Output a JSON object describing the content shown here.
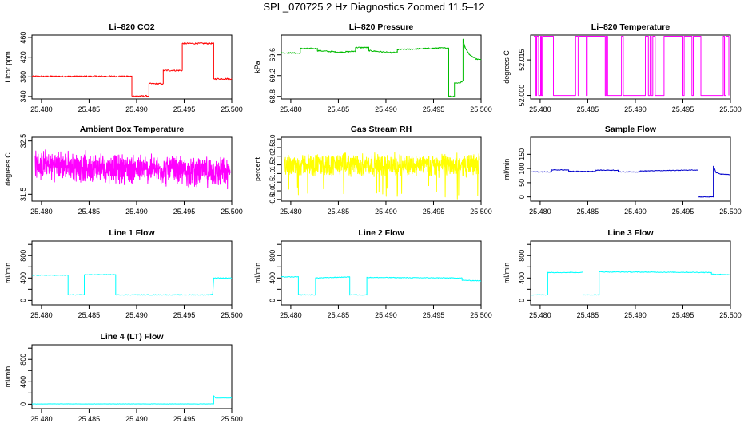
{
  "page": {
    "title": "SPL_070725  2 Hz Diagnostics Zoomed 11.5–12"
  },
  "chart_data": [
    {
      "type": "line",
      "title": "Li–820 CO2",
      "xlabel": "",
      "ylabel": "Licor ppm",
      "color": "#ff0000",
      "xlim": [
        25.479,
        25.5
      ],
      "ylim": [
        335,
        465
      ],
      "xticks": [
        25.48,
        25.485,
        25.49,
        25.495,
        25.5
      ],
      "xtick_labels": [
        "25.480",
        "25.485",
        "25.490",
        "25.495",
        "25.500"
      ],
      "yticks": [
        340,
        380,
        420,
        460
      ],
      "ytick_labels": [
        "340",
        "380",
        "420",
        "460"
      ],
      "series": [
        {
          "noise": 1.5,
          "points": [
            [
              25.479,
              381
            ],
            [
              25.4895,
              381
            ],
            [
              25.4895,
              341
            ],
            [
              25.4913,
              341
            ],
            [
              25.4913,
              366
            ],
            [
              25.4928,
              366
            ],
            [
              25.4928,
              393
            ],
            [
              25.4948,
              393
            ],
            [
              25.4948,
              448
            ],
            [
              25.4981,
              448
            ],
            [
              25.4981,
              376
            ],
            [
              25.5,
              376
            ]
          ]
        }
      ]
    },
    {
      "type": "line",
      "title": "Li–820 Pressure",
      "xlabel": "",
      "ylabel": "kPa",
      "color": "#00bb00",
      "xlim": [
        25.479,
        25.5
      ],
      "ylim": [
        68.75,
        69.98
      ],
      "xticks": [
        25.48,
        25.485,
        25.49,
        25.495,
        25.5
      ],
      "xtick_labels": [
        "25.480",
        "25.485",
        "25.490",
        "25.495",
        "25.500"
      ],
      "yticks": [
        68.8,
        69.2,
        69.6
      ],
      "ytick_labels": [
        "68.8",
        "69.2",
        "69.6"
      ],
      "series": [
        {
          "noise": 0.012,
          "points": [
            [
              25.479,
              69.64
            ],
            [
              25.481,
              69.63
            ],
            [
              25.481,
              69.72
            ],
            [
              25.4828,
              69.72
            ],
            [
              25.4828,
              69.68
            ],
            [
              25.4852,
              69.65
            ],
            [
              25.4868,
              69.67
            ],
            [
              25.4868,
              69.74
            ],
            [
              25.4882,
              69.74
            ],
            [
              25.4882,
              69.68
            ],
            [
              25.4905,
              69.64
            ],
            [
              25.4912,
              69.65
            ],
            [
              25.4912,
              69.7
            ],
            [
              25.4955,
              69.73
            ],
            [
              25.4966,
              69.73
            ],
            [
              25.4966,
              68.8
            ],
            [
              25.4972,
              68.8
            ],
            [
              25.4972,
              69.06
            ],
            [
              25.4978,
              69.06
            ],
            [
              25.4981,
              69.1
            ],
            [
              25.4981,
              69.9
            ],
            [
              25.4983,
              69.75
            ],
            [
              25.4988,
              69.6
            ],
            [
              25.4995,
              69.52
            ],
            [
              25.5,
              69.5
            ]
          ]
        }
      ]
    },
    {
      "type": "line",
      "title": "Li–820 Temperature",
      "xlabel": "",
      "ylabel": "degrees C",
      "color": "#ff00ff",
      "xlim": [
        25.479,
        25.5
      ],
      "ylim": [
        51.9985,
        52.0255
      ],
      "xticks": [
        25.48,
        25.485,
        25.49,
        25.495,
        25.5
      ],
      "xtick_labels": [
        "25.480",
        "25.485",
        "25.490",
        "25.495",
        "25.500"
      ],
      "yticks": [
        52.0,
        52.015
      ],
      "ytick_labels": [
        "52.000",
        "52.015"
      ],
      "series": [
        {
          "mode": "binary",
          "low": 52.0,
          "high": 52.025,
          "points": []
        }
      ]
    },
    {
      "type": "line",
      "title": "Ambient Box Temperature",
      "xlabel": "",
      "ylabel": "degrees C",
      "color": "#ff00ff",
      "xlim": [
        25.479,
        25.5
      ],
      "ylim": [
        31.37,
        32.57
      ],
      "xticks": [
        25.48,
        25.485,
        25.49,
        25.495,
        25.5
      ],
      "xtick_labels": [
        "25.480",
        "25.485",
        "25.490",
        "25.495",
        "25.500"
      ],
      "yticks": [
        31.5,
        32.5
      ],
      "ytick_labels": [
        "31.5",
        "32.5"
      ],
      "series": [
        {
          "mode": "noise",
          "mean_start": 32.05,
          "mean_end": 31.9,
          "amp": 0.32,
          "points": []
        }
      ]
    },
    {
      "type": "line",
      "title": "Gas Stream RH",
      "xlabel": "",
      "ylabel": "percent",
      "color": "#ffff00",
      "xlim": [
        25.479,
        25.5
      ],
      "ylim": [
        -0.6,
        3.1
      ],
      "xticks": [
        25.48,
        25.485,
        25.49,
        25.495,
        25.5
      ],
      "xtick_labels": [
        "25.480",
        "25.485",
        "25.490",
        "25.495",
        "25.500"
      ],
      "yticks": [
        -0.5,
        0.5,
        1.5,
        2.5
      ],
      "ytick_labels": [
        "-0.5",
        "0.5",
        "1.5",
        "2.5"
      ],
      "y_minor_ticks": [
        0.0,
        1.0,
        2.0,
        3.0
      ],
      "y_minor_labels": [
        "0.0",
        "1.0",
        "2.0",
        "3.0"
      ],
      "series": [
        {
          "mode": "noise",
          "mean_start": 1.5,
          "mean_end": 1.5,
          "amp": 0.75,
          "spikes_down": true,
          "points": []
        }
      ]
    },
    {
      "type": "line",
      "title": "Sample Flow",
      "xlabel": "",
      "ylabel": "ml/min",
      "color": "#0000cc",
      "xlim": [
        25.479,
        25.5
      ],
      "ylim": [
        -15,
        210
      ],
      "xticks": [
        25.48,
        25.485,
        25.49,
        25.495,
        25.5
      ],
      "xtick_labels": [
        "25.480",
        "25.485",
        "25.490",
        "25.495",
        "25.500"
      ],
      "yticks": [
        0,
        50,
        100,
        150
      ],
      "ytick_labels": [
        "0",
        "50",
        "100",
        "150"
      ],
      "series": [
        {
          "noise": 1.2,
          "points": [
            [
              25.479,
              88
            ],
            [
              25.4812,
              88
            ],
            [
              25.4812,
              95
            ],
            [
              25.483,
              95
            ],
            [
              25.483,
              90
            ],
            [
              25.4858,
              90
            ],
            [
              25.4858,
              94
            ],
            [
              25.4882,
              94
            ],
            [
              25.4882,
              88
            ],
            [
              25.4905,
              88
            ],
            [
              25.4905,
              91
            ],
            [
              25.4966,
              95
            ],
            [
              25.4966,
              0
            ],
            [
              25.4982,
              0
            ],
            [
              25.4982,
              108
            ],
            [
              25.4985,
              85
            ],
            [
              25.499,
              80
            ],
            [
              25.5,
              78
            ]
          ]
        }
      ]
    },
    {
      "type": "line",
      "title": "Line 1 Flow",
      "xlabel": "",
      "ylabel": "ml/min",
      "color": "#00ffff",
      "xlim": [
        25.479,
        25.5
      ],
      "ylim": [
        -80,
        1060
      ],
      "xticks": [
        25.48,
        25.485,
        25.49,
        25.495,
        25.5
      ],
      "xtick_labels": [
        "25.480",
        "25.485",
        "25.490",
        "25.495",
        "25.500"
      ],
      "yticks": [
        0,
        400,
        800
      ],
      "ytick_labels": [
        "0",
        "400",
        "800"
      ],
      "y_minor_ticks": [
        200,
        600,
        1000
      ],
      "series": [
        {
          "noise": 6,
          "points": [
            [
              25.479,
              450
            ],
            [
              25.4828,
              450
            ],
            [
              25.4828,
              100
            ],
            [
              25.4845,
              100
            ],
            [
              25.4845,
              460
            ],
            [
              25.4878,
              460
            ],
            [
              25.4878,
              100
            ],
            [
              25.4975,
              100
            ],
            [
              25.498,
              110
            ],
            [
              25.4981,
              400
            ],
            [
              25.5,
              400
            ]
          ]
        }
      ]
    },
    {
      "type": "line",
      "title": "Line 2 Flow",
      "xlabel": "",
      "ylabel": "ml/min",
      "color": "#00ffff",
      "xlim": [
        25.479,
        25.5
      ],
      "ylim": [
        -80,
        1060
      ],
      "xticks": [
        25.48,
        25.485,
        25.49,
        25.495,
        25.5
      ],
      "xtick_labels": [
        "25.480",
        "25.485",
        "25.490",
        "25.495",
        "25.500"
      ],
      "yticks": [
        0,
        400,
        800
      ],
      "ytick_labels": [
        "0",
        "400",
        "800"
      ],
      "y_minor_ticks": [
        200,
        600,
        1000
      ],
      "series": [
        {
          "noise": 6,
          "points": [
            [
              25.479,
              420
            ],
            [
              25.4808,
              420
            ],
            [
              25.4808,
              100
            ],
            [
              25.4826,
              100
            ],
            [
              25.4826,
              400
            ],
            [
              25.4862,
              420
            ],
            [
              25.4862,
              100
            ],
            [
              25.488,
              100
            ],
            [
              25.488,
              410
            ],
            [
              25.498,
              400
            ],
            [
              25.498,
              360
            ],
            [
              25.5,
              350
            ]
          ]
        }
      ]
    },
    {
      "type": "line",
      "title": "Line 3 Flow",
      "xlabel": "",
      "ylabel": "ml/min",
      "color": "#00ffff",
      "xlim": [
        25.479,
        25.5
      ],
      "ylim": [
        -80,
        1060
      ],
      "xticks": [
        25.48,
        25.485,
        25.49,
        25.495,
        25.5
      ],
      "xtick_labels": [
        "25.480",
        "25.485",
        "25.490",
        "25.495",
        "25.500"
      ],
      "yticks": [
        0,
        400,
        800
      ],
      "ytick_labels": [
        "0",
        "400",
        "800"
      ],
      "y_minor_ticks": [
        200,
        600,
        1000
      ],
      "series": [
        {
          "noise": 6,
          "points": [
            [
              25.479,
              100
            ],
            [
              25.4808,
              100
            ],
            [
              25.4808,
              500
            ],
            [
              25.4845,
              500
            ],
            [
              25.4845,
              100
            ],
            [
              25.4862,
              100
            ],
            [
              25.4862,
              510
            ],
            [
              25.498,
              500
            ],
            [
              25.498,
              470
            ],
            [
              25.5,
              460
            ]
          ]
        }
      ]
    },
    {
      "type": "line",
      "title": "Line 4 (LT) Flow",
      "xlabel": "",
      "ylabel": "ml/min",
      "color": "#00ffff",
      "xlim": [
        25.479,
        25.5
      ],
      "ylim": [
        -80,
        1060
      ],
      "xticks": [
        25.48,
        25.485,
        25.49,
        25.495,
        25.5
      ],
      "xtick_labels": [
        "25.480",
        "25.485",
        "25.490",
        "25.495",
        "25.500"
      ],
      "yticks": [
        0,
        400,
        800
      ],
      "ytick_labels": [
        "0",
        "400",
        "800"
      ],
      "y_minor_ticks": [
        200,
        600,
        1000
      ],
      "series": [
        {
          "noise": 2,
          "points": [
            [
              25.479,
              5
            ],
            [
              25.4981,
              5
            ],
            [
              25.4981,
              150
            ],
            [
              25.4983,
              110
            ],
            [
              25.5,
              110
            ]
          ]
        }
      ]
    }
  ]
}
